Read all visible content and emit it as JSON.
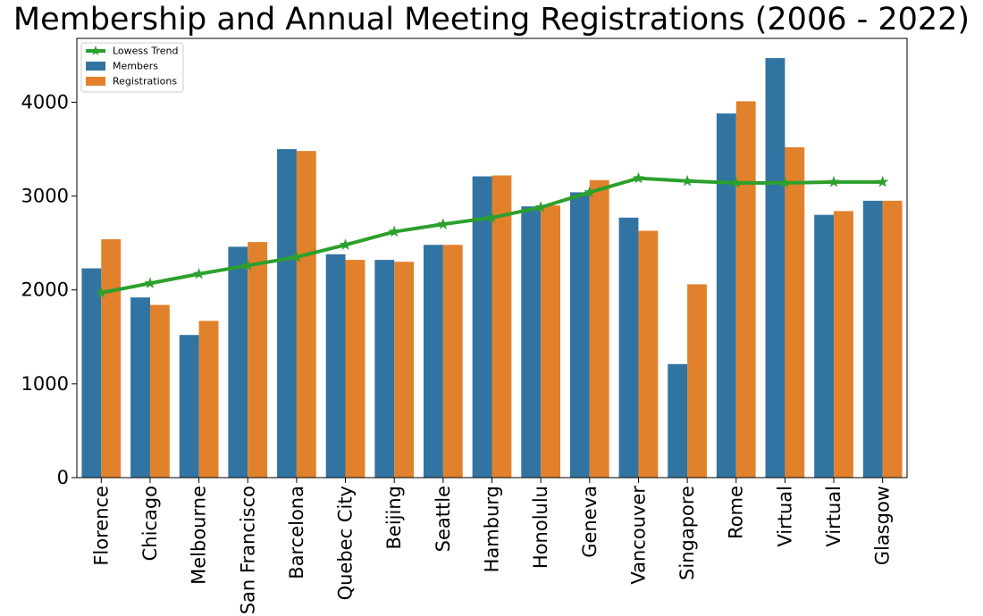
{
  "chart_data": {
    "type": "bar",
    "title": "Membership and Annual Meeting Registrations (2006 - 2022)",
    "xlabel": "",
    "ylabel": "",
    "ylim": [
      0,
      4680
    ],
    "yticks": [
      0,
      1000,
      2000,
      3000,
      4000
    ],
    "grid": false,
    "legend_position": "top-left",
    "categories": [
      "Florence",
      "Chicago",
      "Melbourne",
      "San Francisco",
      "Barcelona",
      "Quebec City",
      "Beijing",
      "Seattle",
      "Hamburg",
      "Honolulu",
      "Geneva",
      "Vancouver",
      "Singapore",
      "Rome",
      "Virtual",
      "Virtual",
      "Glasgow"
    ],
    "series": [
      {
        "name": "Members",
        "type": "bar",
        "color": "#3274a1",
        "values": [
          2230,
          1920,
          1520,
          2460,
          3500,
          2380,
          2320,
          2480,
          3210,
          2890,
          3040,
          2770,
          1210,
          3880,
          4470,
          2800,
          2950
        ]
      },
      {
        "name": "Registrations",
        "type": "bar",
        "color": "#e1812c",
        "values": [
          2540,
          1840,
          1670,
          2510,
          3480,
          2320,
          2300,
          2480,
          3220,
          2900,
          3170,
          2630,
          2060,
          4010,
          3520,
          2840,
          2950
        ]
      },
      {
        "name": "Lowess Trend",
        "type": "line",
        "marker": "star",
        "color": "#2ca02c",
        "values": [
          1970,
          2070,
          2170,
          2260,
          2350,
          2480,
          2620,
          2700,
          2770,
          2880,
          3040,
          3190,
          3160,
          3140,
          3140,
          3150,
          3150
        ]
      }
    ]
  }
}
